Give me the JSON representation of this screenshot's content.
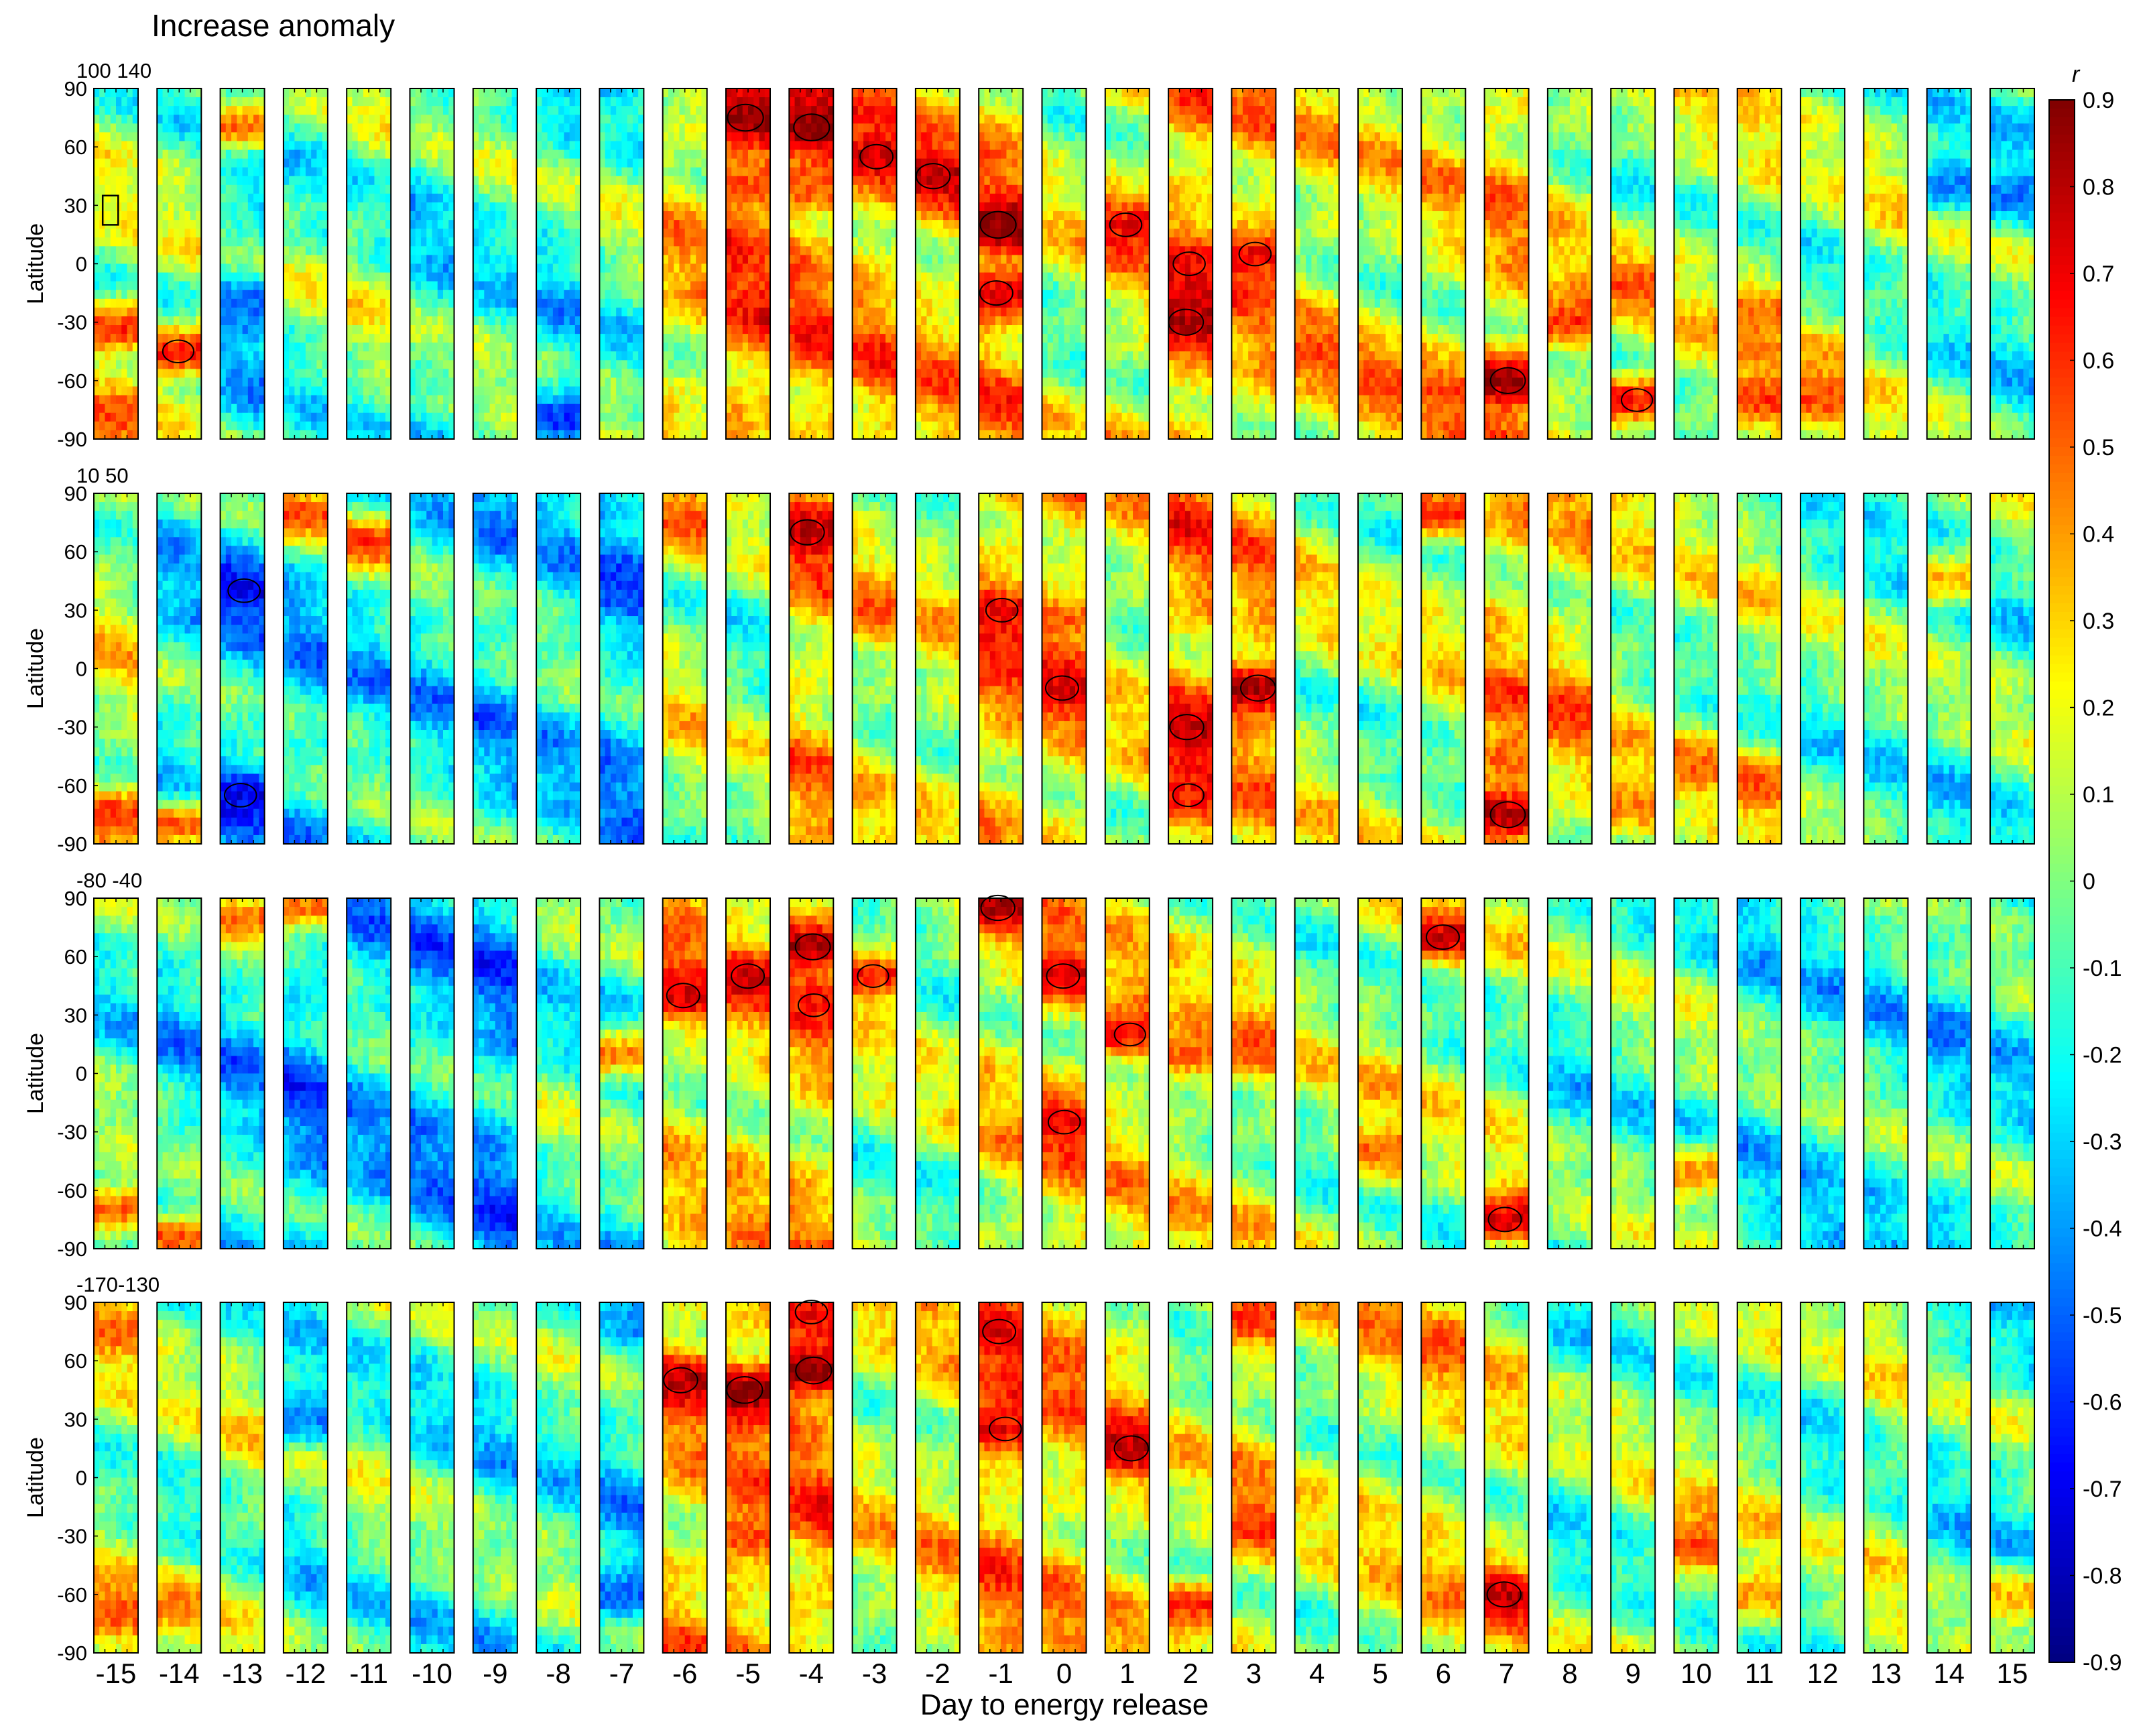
{
  "chart_data": {
    "type": "heatmap",
    "title": "Increase anomaly",
    "xlabel": "Day to energy release",
    "ylabel": "Latitude",
    "colorbar": {
      "label": "r",
      "range": [
        -0.9,
        0.9
      ],
      "ticks": [
        0.9,
        0.8,
        0.7,
        0.6,
        0.5,
        0.4,
        0.3,
        0.2,
        0.1,
        0,
        -0.1,
        -0.2,
        -0.3,
        -0.4,
        -0.5,
        -0.6,
        -0.7,
        -0.8,
        -0.9
      ],
      "tick_labels": [
        "0.9",
        "0.8",
        "0.7",
        "0.6",
        "0.5",
        "0.4",
        "0.3",
        "0.2",
        "0.1",
        "0",
        "-0.1",
        "-0.2",
        "-0.3",
        "-0.4",
        "-0.5",
        "-0.6",
        "-0.7",
        "-0.8",
        "-0.9"
      ],
      "colormap": "jet"
    },
    "days": [
      -15,
      -14,
      -13,
      -12,
      -11,
      -10,
      -9,
      -8,
      -7,
      -6,
      -5,
      -4,
      -3,
      -2,
      -1,
      0,
      1,
      2,
      3,
      4,
      5,
      6,
      7,
      8,
      9,
      10,
      11,
      12,
      13,
      14,
      15
    ],
    "day_labels": [
      "-15",
      "-14",
      "-13",
      "-12",
      "-11",
      "-10",
      "-9",
      "-8",
      "-7",
      "-6",
      "-5",
      "-4",
      "-3",
      "-2",
      "-1",
      "0",
      "1",
      "2",
      "3",
      "4",
      "5",
      "6",
      "7",
      "8",
      "9",
      "10",
      "11",
      "12",
      "13",
      "14",
      "15"
    ],
    "lat_ticks": [
      90,
      60,
      30,
      0,
      -30,
      -60,
      -90
    ],
    "lat_tick_labels": [
      "90",
      "60",
      "30",
      "0",
      "-30",
      "-60",
      "-90"
    ],
    "lon_annotation_note": "longitude sector of each row",
    "rows": [
      {
        "lon_label": "100 140",
        "lon_range": [
          100,
          140
        ],
        "marker_box": {
          "day": -15,
          "lat": [
            20,
            35
          ],
          "lon": [
            108,
            122
          ]
        },
        "column_mean_r": [
          0.05,
          0.0,
          -0.2,
          -0.05,
          0.0,
          -0.15,
          -0.1,
          -0.15,
          -0.05,
          0.25,
          0.45,
          0.4,
          0.35,
          0.3,
          0.35,
          0.1,
          0.2,
          0.4,
          0.3,
          0.2,
          0.15,
          0.2,
          0.3,
          0.15,
          0.05,
          0.1,
          0.1,
          0.0,
          0.05,
          -0.05,
          -0.1
        ],
        "hotspots": [
          {
            "day": -15,
            "lat": -33,
            "r": 0.6
          },
          {
            "day": -15,
            "lat": -80,
            "r": 0.55
          },
          {
            "day": -14,
            "lat": -45,
            "r": 0.65
          },
          {
            "day": -13,
            "lat": 70,
            "r": 0.5
          },
          {
            "day": -13,
            "lat": -20,
            "r": -0.5
          },
          {
            "day": -8,
            "lat": -80,
            "r": -0.6
          },
          {
            "day": -5,
            "lat": 75,
            "r": 0.9
          },
          {
            "day": -5,
            "lat": 40,
            "r": 0.55
          },
          {
            "day": -4,
            "lat": 70,
            "r": 0.9
          },
          {
            "day": -4,
            "lat": 40,
            "r": 0.55
          },
          {
            "day": -3,
            "lat": 55,
            "r": 0.75
          },
          {
            "day": -2,
            "lat": 45,
            "r": 0.8
          },
          {
            "day": -1,
            "lat": 20,
            "r": 0.9
          },
          {
            "day": -1,
            "lat": -15,
            "r": 0.75
          },
          {
            "day": 1,
            "lat": 20,
            "r": 0.7
          },
          {
            "day": 2,
            "lat": -30,
            "r": 0.85
          },
          {
            "day": 2,
            "lat": 0,
            "r": 0.7
          },
          {
            "day": 3,
            "lat": 5,
            "r": 0.7
          },
          {
            "day": 4,
            "lat": -45,
            "r": 0.55
          },
          {
            "day": 5,
            "lat": -60,
            "r": 0.55
          },
          {
            "day": 6,
            "lat": -65,
            "r": 0.55
          },
          {
            "day": 7,
            "lat": -60,
            "r": 0.85
          },
          {
            "day": 8,
            "lat": -30,
            "r": 0.6
          },
          {
            "day": 9,
            "lat": -70,
            "r": 0.65
          },
          {
            "day": 9,
            "lat": -10,
            "r": 0.55
          },
          {
            "day": 11,
            "lat": -70,
            "r": 0.6
          },
          {
            "day": 11,
            "lat": -25,
            "r": 0.5
          },
          {
            "day": 12,
            "lat": -70,
            "r": 0.55
          },
          {
            "day": 12,
            "lat": -45,
            "r": 0.4
          },
          {
            "day": 14,
            "lat": 40,
            "r": -0.45
          },
          {
            "day": 15,
            "lat": 35,
            "r": -0.45
          }
        ]
      },
      {
        "lon_label": "10 50",
        "lon_range": [
          10,
          50
        ],
        "column_mean_r": [
          0.1,
          -0.2,
          -0.25,
          -0.25,
          -0.2,
          -0.2,
          -0.25,
          -0.2,
          -0.3,
          0.1,
          0.0,
          0.3,
          0.15,
          0.15,
          0.35,
          0.3,
          0.15,
          0.4,
          0.3,
          0.1,
          0.05,
          0.1,
          0.3,
          0.25,
          0.1,
          0.05,
          0.05,
          -0.05,
          -0.05,
          -0.1,
          -0.05
        ],
        "hotspots": [
          {
            "day": -15,
            "lat": -75,
            "r": 0.6
          },
          {
            "day": -14,
            "lat": -80,
            "r": 0.5
          },
          {
            "day": -13,
            "lat": 40,
            "r": -0.7
          },
          {
            "day": -13,
            "lat": -65,
            "r": -0.7
          },
          {
            "day": -12,
            "lat": 80,
            "r": 0.55
          },
          {
            "day": -11,
            "lat": 65,
            "r": 0.6
          },
          {
            "day": -7,
            "lat": 40,
            "r": -0.55
          },
          {
            "day": -6,
            "lat": 75,
            "r": 0.55
          },
          {
            "day": -4,
            "lat": 70,
            "r": 0.8
          },
          {
            "day": -3,
            "lat": 30,
            "r": 0.55
          },
          {
            "day": -1,
            "lat": 30,
            "r": 0.7
          },
          {
            "day": -1,
            "lat": 0,
            "r": 0.6
          },
          {
            "day": 0,
            "lat": -10,
            "r": 0.75
          },
          {
            "day": 0,
            "lat": 25,
            "r": 0.5
          },
          {
            "day": 2,
            "lat": -30,
            "r": 0.8
          },
          {
            "day": 2,
            "lat": -65,
            "r": 0.65
          },
          {
            "day": 3,
            "lat": -10,
            "r": 0.85
          },
          {
            "day": 6,
            "lat": 80,
            "r": 0.6
          },
          {
            "day": 7,
            "lat": -75,
            "r": 0.85
          },
          {
            "day": 7,
            "lat": -45,
            "r": 0.5
          },
          {
            "day": 8,
            "lat": -20,
            "r": 0.6
          },
          {
            "day": 9,
            "lat": -70,
            "r": 0.45
          },
          {
            "day": 10,
            "lat": -50,
            "r": 0.5
          },
          {
            "day": 11,
            "lat": -60,
            "r": 0.55
          },
          {
            "day": 14,
            "lat": 45,
            "r": 0.35
          }
        ]
      },
      {
        "lon_label": "-80 -40",
        "lon_range": [
          -80,
          -40
        ],
        "column_mean_r": [
          -0.1,
          -0.2,
          -0.25,
          -0.35,
          -0.25,
          -0.3,
          -0.35,
          -0.1,
          -0.15,
          0.2,
          0.25,
          0.3,
          0.05,
          0.05,
          0.2,
          0.25,
          0.2,
          0.15,
          0.15,
          0.05,
          0.1,
          0.05,
          0.05,
          -0.1,
          -0.05,
          -0.05,
          -0.15,
          -0.15,
          -0.15,
          -0.2,
          -0.15
        ],
        "hotspots": [
          {
            "day": -15,
            "lat": -70,
            "r": 0.5
          },
          {
            "day": -14,
            "lat": -85,
            "r": 0.55
          },
          {
            "day": -13,
            "lat": 80,
            "r": 0.5
          },
          {
            "day": -12,
            "lat": 85,
            "r": 0.5
          },
          {
            "day": -7,
            "lat": 10,
            "r": 0.45
          },
          {
            "day": -6,
            "lat": 40,
            "r": 0.75
          },
          {
            "day": -6,
            "lat": 75,
            "r": 0.55
          },
          {
            "day": -5,
            "lat": 50,
            "r": 0.75
          },
          {
            "day": -4,
            "lat": 65,
            "r": 0.85
          },
          {
            "day": -4,
            "lat": 35,
            "r": 0.65
          },
          {
            "day": -3,
            "lat": 50,
            "r": 0.65
          },
          {
            "day": -1,
            "lat": 85,
            "r": 0.8
          },
          {
            "day": 0,
            "lat": 50,
            "r": 0.75
          },
          {
            "day": 0,
            "lat": -25,
            "r": 0.7
          },
          {
            "day": 1,
            "lat": 20,
            "r": 0.65
          },
          {
            "day": 2,
            "lat": 10,
            "r": 0.5
          },
          {
            "day": 3,
            "lat": 15,
            "r": 0.55
          },
          {
            "day": 5,
            "lat": -40,
            "r": 0.5
          },
          {
            "day": 6,
            "lat": 70,
            "r": 0.75
          },
          {
            "day": 7,
            "lat": -75,
            "r": 0.75
          },
          {
            "day": 10,
            "lat": -50,
            "r": 0.4
          }
        ]
      },
      {
        "lon_label": "-170-130",
        "lon_range": [
          -170,
          -130
        ],
        "column_mean_r": [
          0.05,
          0.0,
          0.05,
          -0.1,
          -0.05,
          -0.1,
          -0.15,
          -0.1,
          -0.2,
          0.3,
          0.35,
          0.4,
          0.15,
          0.2,
          0.35,
          0.3,
          0.25,
          0.1,
          0.2,
          0.1,
          0.15,
          0.2,
          0.15,
          -0.05,
          0.0,
          0.05,
          0.05,
          -0.05,
          0.05,
          -0.1,
          -0.1
        ],
        "hotspots": [
          {
            "day": -15,
            "lat": 75,
            "r": 0.5
          },
          {
            "day": -15,
            "lat": -70,
            "r": 0.55
          },
          {
            "day": -14,
            "lat": -65,
            "r": 0.45
          },
          {
            "day": -12,
            "lat": 30,
            "r": -0.45
          },
          {
            "day": -7,
            "lat": -60,
            "r": -0.5
          },
          {
            "day": -6,
            "lat": 50,
            "r": 0.8
          },
          {
            "day": -5,
            "lat": 45,
            "r": 0.9
          },
          {
            "day": -5,
            "lat": -30,
            "r": 0.55
          },
          {
            "day": -4,
            "lat": 55,
            "r": 0.9
          },
          {
            "day": -4,
            "lat": 85,
            "r": 0.7
          },
          {
            "day": -1,
            "lat": 75,
            "r": 0.75
          },
          {
            "day": -1,
            "lat": 25,
            "r": 0.7
          },
          {
            "day": 0,
            "lat": 60,
            "r": 0.55
          },
          {
            "day": 1,
            "lat": 15,
            "r": 0.8
          },
          {
            "day": 2,
            "lat": -65,
            "r": 0.6
          },
          {
            "day": 3,
            "lat": -25,
            "r": 0.6
          },
          {
            "day": 3,
            "lat": 80,
            "r": 0.6
          },
          {
            "day": 5,
            "lat": 80,
            "r": 0.5
          },
          {
            "day": 6,
            "lat": 70,
            "r": 0.55
          },
          {
            "day": 7,
            "lat": -60,
            "r": 0.8
          },
          {
            "day": 10,
            "lat": -35,
            "r": 0.6
          },
          {
            "day": 11,
            "lat": -60,
            "r": 0.4
          },
          {
            "day": 15,
            "lat": -60,
            "r": 0.35
          }
        ]
      }
    ]
  }
}
